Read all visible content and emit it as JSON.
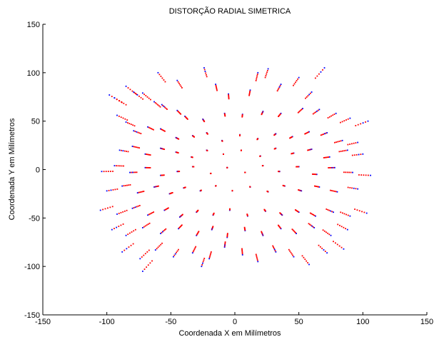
{
  "chart_data": {
    "type": "scatter",
    "title": "DISTORÇÃO RADIAL SIMETRICA",
    "xlabel": "Coordenada X em Milímetros",
    "ylabel": "Coordenada Y em Milímetros",
    "xlim": [
      -150,
      150
    ],
    "ylim": [
      -150,
      150
    ],
    "xticks": [
      "-150",
      "-100",
      "-50",
      "0",
      "50",
      "100",
      "150"
    ],
    "yticks": [
      "150",
      "100",
      "50",
      "0",
      "-50",
      "-100",
      "-150"
    ],
    "xtick_values": [
      -150,
      -100,
      -50,
      0,
      50,
      100,
      150
    ],
    "ytick_values": [
      150,
      100,
      50,
      0,
      -50,
      -100,
      -150
    ],
    "grid": false,
    "colors": {
      "original": "#0000ff",
      "distorted": "#ff0000",
      "axes": "#000000"
    },
    "distortion_coefficient": 0.12,
    "segments": [
      [
        -98,
        77
      ],
      [
        -94,
        74
      ],
      [
        -85,
        86
      ],
      [
        -79,
        80
      ],
      [
        -72,
        79
      ],
      [
        -63,
        70
      ],
      [
        -57,
        67
      ],
      [
        -45,
        61
      ],
      [
        -39,
        55
      ],
      [
        -25,
        52
      ],
      [
        -8,
        58
      ],
      [
        6,
        57
      ],
      [
        22,
        60
      ],
      [
        36,
        58
      ],
      [
        53,
        63
      ],
      [
        66,
        62
      ],
      [
        79,
        58
      ],
      [
        90,
        53
      ],
      [
        104,
        50
      ],
      [
        -92,
        56
      ],
      [
        -85,
        49
      ],
      [
        -79,
        40
      ],
      [
        -68,
        44
      ],
      [
        -58,
        42
      ],
      [
        -46,
        33
      ],
      [
        -33,
        35
      ],
      [
        -22,
        38
      ],
      [
        -10,
        30
      ],
      [
        4,
        36
      ],
      [
        18,
        32
      ],
      [
        32,
        37
      ],
      [
        45,
        34
      ],
      [
        58,
        39
      ],
      [
        72,
        38
      ],
      [
        84,
        30
      ],
      [
        96,
        28
      ],
      [
        -90,
        20
      ],
      [
        -80,
        24
      ],
      [
        -70,
        16
      ],
      [
        -58,
        22
      ],
      [
        -46,
        18
      ],
      [
        -34,
        13
      ],
      [
        -22,
        20
      ],
      [
        -9,
        16
      ],
      [
        5,
        20
      ],
      [
        20,
        14
      ],
      [
        32,
        22
      ],
      [
        46,
        17
      ],
      [
        60,
        21
      ],
      [
        74,
        13
      ],
      [
        88,
        20
      ],
      [
        100,
        16
      ],
      [
        -104,
        -2
      ],
      [
        -94,
        4
      ],
      [
        -82,
        -3
      ],
      [
        -70,
        2
      ],
      [
        -58,
        -6
      ],
      [
        -45,
        -2
      ],
      [
        -33,
        3
      ],
      [
        -19,
        -4
      ],
      [
        -6,
        2
      ],
      [
        8,
        -3
      ],
      [
        22,
        4
      ],
      [
        35,
        -2
      ],
      [
        50,
        3
      ],
      [
        64,
        -5
      ],
      [
        78,
        2
      ],
      [
        92,
        -3
      ],
      [
        106,
        -6
      ],
      [
        -100,
        -22
      ],
      [
        -88,
        -17
      ],
      [
        -76,
        -24
      ],
      [
        -63,
        -18
      ],
      [
        -51,
        -25
      ],
      [
        -40,
        -19
      ],
      [
        -27,
        -22
      ],
      [
        -15,
        -17
      ],
      [
        -2,
        -22
      ],
      [
        12,
        -18
      ],
      [
        26,
        -23
      ],
      [
        39,
        -17
      ],
      [
        52,
        -22
      ],
      [
        66,
        -18
      ],
      [
        80,
        -23
      ],
      [
        96,
        -20
      ],
      [
        -105,
        -42
      ],
      [
        -92,
        -46
      ],
      [
        -80,
        -40
      ],
      [
        -68,
        -47
      ],
      [
        -55,
        -42
      ],
      [
        -43,
        -49
      ],
      [
        -30,
        -44
      ],
      [
        -17,
        -47
      ],
      [
        -4,
        -42
      ],
      [
        10,
        -48
      ],
      [
        24,
        -43
      ],
      [
        37,
        -47
      ],
      [
        50,
        -44
      ],
      [
        63,
        -48
      ],
      [
        77,
        -44
      ],
      [
        90,
        -48
      ],
      [
        103,
        -45
      ],
      [
        -96,
        -62
      ],
      [
        -85,
        -68
      ],
      [
        -72,
        -60
      ],
      [
        -58,
        -66
      ],
      [
        -44,
        -61
      ],
      [
        -30,
        -68
      ],
      [
        -18,
        -62
      ],
      [
        -6,
        -70
      ],
      [
        8,
        -63
      ],
      [
        22,
        -68
      ],
      [
        36,
        -61
      ],
      [
        48,
        -66
      ],
      [
        62,
        -60
      ],
      [
        75,
        -68
      ],
      [
        88,
        -62
      ],
      [
        -88,
        -85
      ],
      [
        -74,
        -92
      ],
      [
        -62,
        -83
      ],
      [
        -48,
        -90
      ],
      [
        -33,
        -86
      ],
      [
        -20,
        -92
      ],
      [
        -8,
        -80
      ],
      [
        6,
        -88
      ],
      [
        18,
        -95
      ],
      [
        32,
        -85
      ],
      [
        46,
        -90
      ],
      [
        58,
        -98
      ],
      [
        72,
        -86
      ],
      [
        85,
        -82
      ],
      [
        -72,
        -105
      ],
      [
        -26,
        -100
      ],
      [
        18,
        100
      ],
      [
        26,
        104
      ],
      [
        -24,
        105
      ],
      [
        -45,
        92
      ],
      [
        50,
        95
      ],
      [
        70,
        105
      ],
      [
        -5,
        78
      ],
      [
        12,
        82
      ],
      [
        36,
        88
      ],
      [
        -60,
        100
      ],
      [
        -15,
        88
      ],
      [
        60,
        80
      ]
    ]
  }
}
